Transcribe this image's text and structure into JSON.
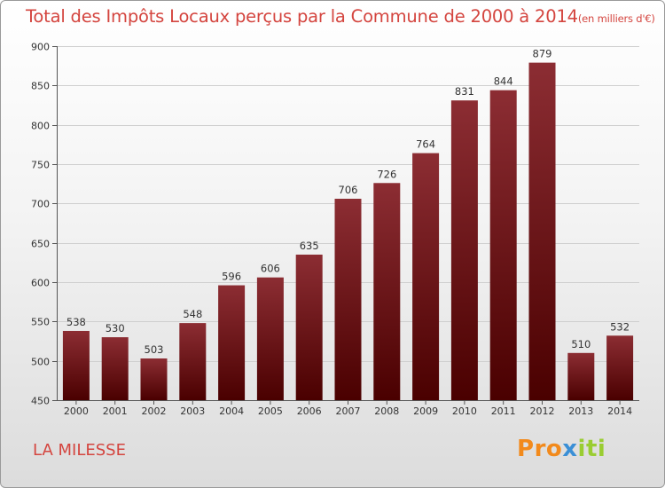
{
  "title": "Total des Impôts Locaux perçus par la Commune de 2000 à 2014",
  "subtitle": "(en milliers d'€)",
  "commune": "LA MILESSE",
  "logo": {
    "letters": [
      "P",
      "r",
      "o",
      "x",
      "i",
      "t",
      "i"
    ],
    "colors": [
      "#f28a1c",
      "#f28a1c",
      "#f28a1c",
      "#3a8fd6",
      "#9acd32",
      "#9acd32",
      "#9acd32"
    ]
  },
  "colors": {
    "bar_top": "#8c2d33",
    "bar_bottom": "#4a0000",
    "title": "#d4453f",
    "grid": "#cfcfcf"
  },
  "chart_data": {
    "type": "bar",
    "title": "Total des Impôts Locaux perçus par la Commune de 2000 à 2014",
    "xlabel": "",
    "ylabel": "",
    "ylim": [
      450,
      900
    ],
    "yticks": [
      450,
      500,
      550,
      600,
      650,
      700,
      750,
      800,
      850,
      900
    ],
    "categories": [
      "2000",
      "2001",
      "2002",
      "2003",
      "2004",
      "2005",
      "2006",
      "2007",
      "2008",
      "2009",
      "2010",
      "2011",
      "2012",
      "2013",
      "2014"
    ],
    "values": [
      538,
      530,
      503,
      548,
      596,
      606,
      635,
      706,
      726,
      764,
      831,
      844,
      879,
      510,
      532
    ]
  }
}
